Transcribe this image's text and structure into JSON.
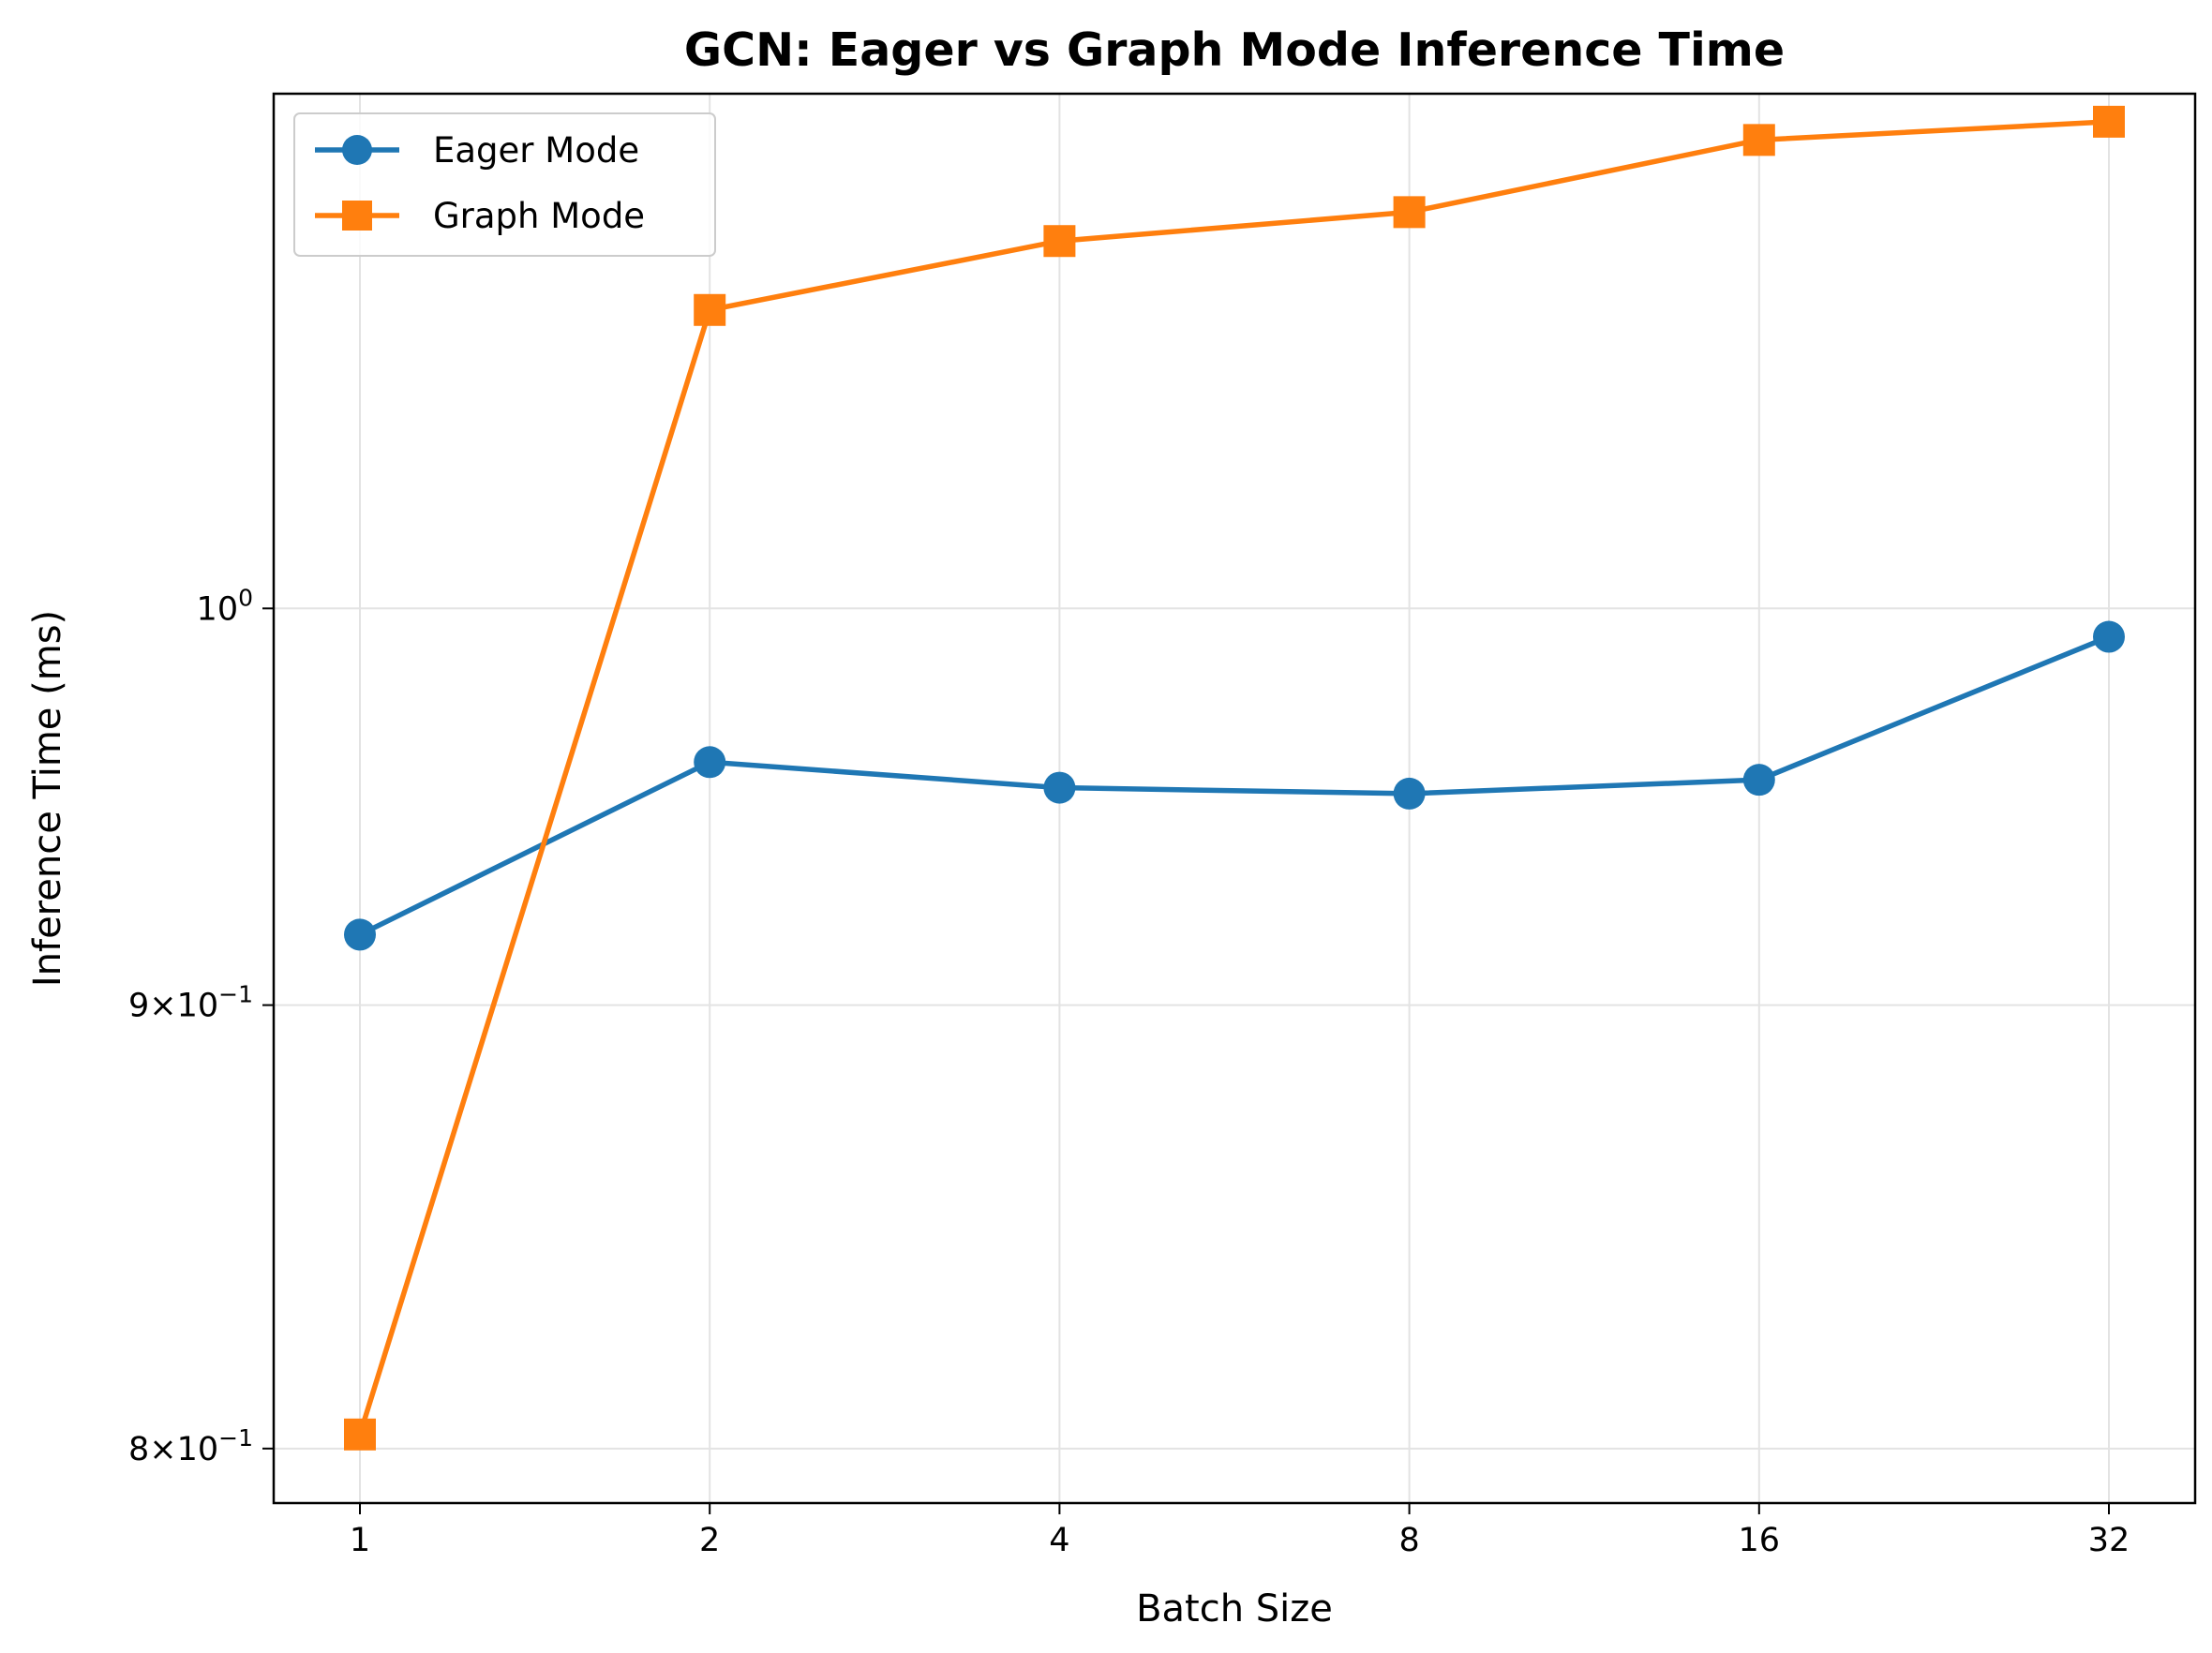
{
  "chart_data": {
    "type": "line",
    "title": "GCN: Eager vs Graph Mode Inference Time",
    "xlabel": "Batch Size",
    "ylabel": "Inference Time (ms)",
    "x_scale": "log2",
    "y_scale": "log",
    "x": [
      1,
      2,
      4,
      8,
      16,
      32
    ],
    "x_tick_labels": [
      "1",
      "2",
      "4",
      "8",
      "16",
      "32"
    ],
    "y_ticks": [
      {
        "value": 0.8,
        "mantissa": "8",
        "base": "10",
        "exp": "−1"
      },
      {
        "value": 0.9,
        "mantissa": "9",
        "base": "10",
        "exp": "−1"
      },
      {
        "value": 1.0,
        "mantissa": "",
        "base": "10",
        "exp": "0"
      }
    ],
    "ylim": [
      0.7885,
      1.1465
    ],
    "grid": true,
    "legend_position": "top-left",
    "series": [
      {
        "name": "Eager Mode",
        "color": "#1f77b4",
        "marker": "circle",
        "values": [
          0.917,
          0.96,
          0.9535,
          0.952,
          0.9555,
          0.9925
        ]
      },
      {
        "name": "Graph Mode",
        "color": "#ff7f0e",
        "marker": "square",
        "values": [
          0.803,
          1.0825,
          1.1025,
          1.111,
          1.1325,
          1.138
        ]
      }
    ]
  }
}
